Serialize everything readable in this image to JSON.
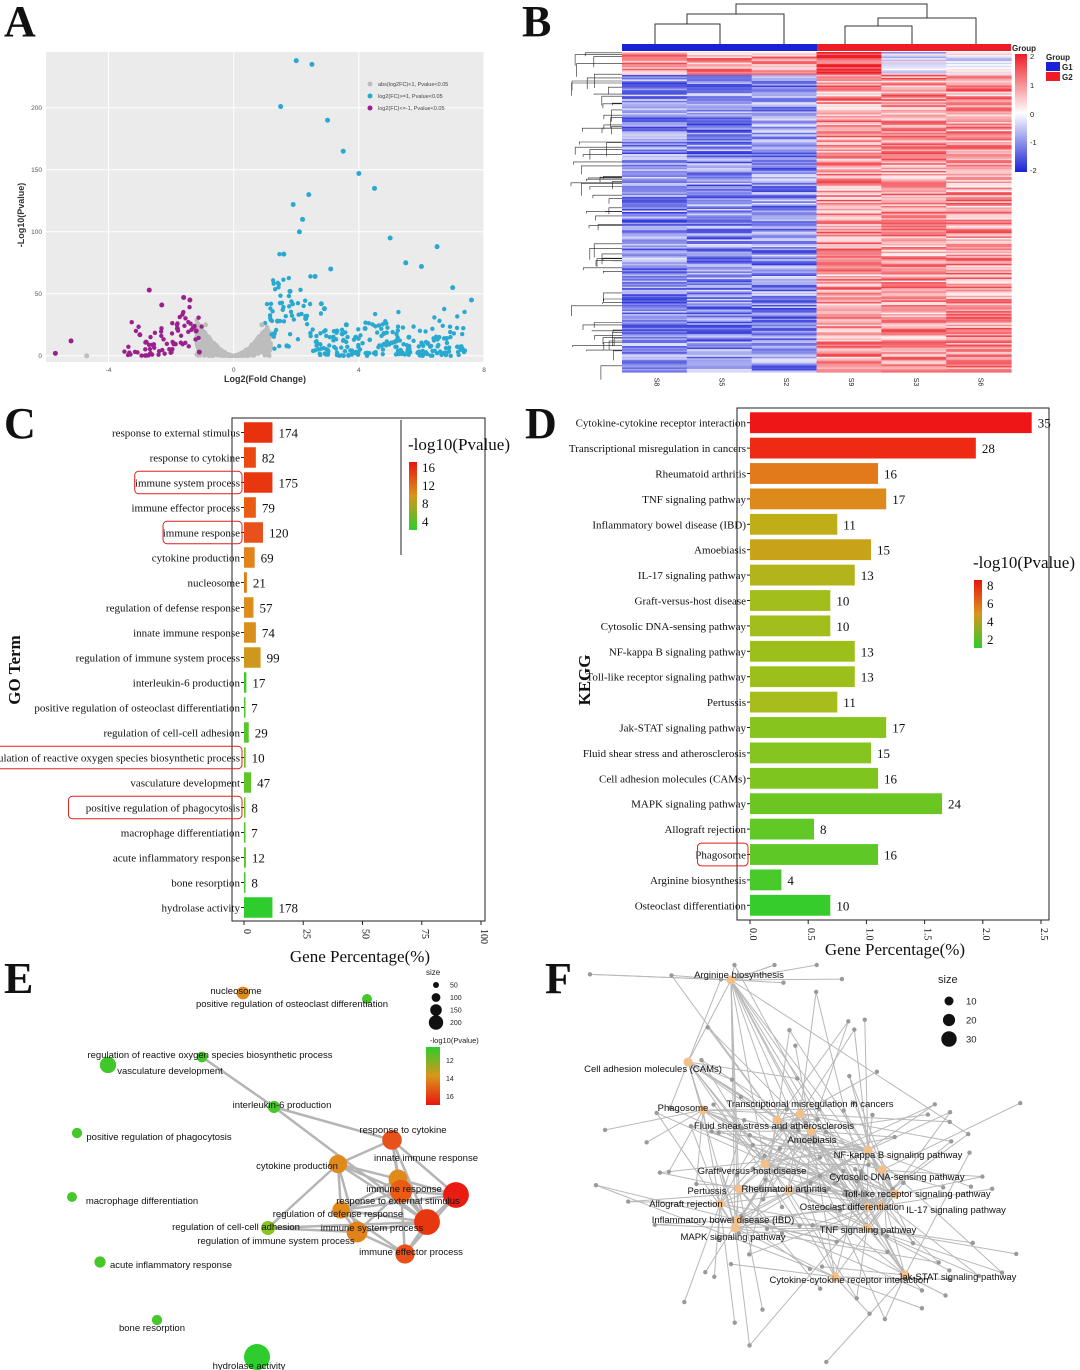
{
  "panel_labels": {
    "a": "A",
    "b": "B",
    "c": "C",
    "d": "D",
    "e": "E",
    "f": "F"
  },
  "chart_data": [
    {
      "panel": "A",
      "type": "scatter",
      "title": "",
      "xlabel": "Log2(Fold Change)",
      "ylabel": "-Log10(Pvalue)",
      "xlim": [
        -6,
        8
      ],
      "ylim": [
        -5,
        245
      ],
      "xticks": [
        "-4",
        "0",
        "4",
        "8"
      ],
      "yticks": [
        "0",
        "50",
        "100",
        "150",
        "200"
      ],
      "xtick_values": [
        -4,
        0,
        4,
        8
      ],
      "ytick_values": [
        0,
        50,
        100,
        150,
        200
      ],
      "legend": {
        "placement": "top-right",
        "entries": [
          {
            "label": "abs(log2FC)<1, Pvalue<0.05",
            "color": "#bdbdbd"
          },
          {
            "label": "log2(FC)>=1, Pvalue<0.05",
            "color": "#29a9cf"
          },
          {
            "label": "log2(FC)<=-1, Pvalue<0.05",
            "color": "#9c1f8e"
          }
        ]
      },
      "series": [
        {
          "name": "up",
          "color": "#29a9cf",
          "x": [
            2.0,
            2.5,
            1.5,
            3.0,
            3.5,
            4.0,
            4.5,
            5.0,
            5.5,
            6.0,
            6.5,
            7.0,
            7.6,
            2.2,
            1.6,
            2.9,
            3.3,
            3.9,
            5.2,
            6.2,
            2.3,
            1.4,
            1.8,
            2.6,
            2.1,
            1.9,
            2.4,
            3.1,
            1.3,
            1.7,
            2.8,
            3.6,
            4.2,
            4.8,
            5.6,
            6.8
          ],
          "y": [
            238,
            235,
            201,
            190,
            165,
            147,
            135,
            95,
            75,
            72,
            88,
            55,
            45,
            110,
            82,
            38,
            20,
            15,
            12,
            10,
            30,
            28,
            52,
            64,
            100,
            122,
            130,
            70,
            18,
            8,
            42,
            25,
            22,
            18,
            15,
            14
          ]
        },
        {
          "name": "down",
          "color": "#9c1f8e",
          "x": [
            -5.7,
            -5.2,
            -3.0,
            -2.7,
            -2.3,
            -2.0,
            -1.8,
            -1.6,
            -1.4,
            -1.2,
            -2.8,
            -1.1
          ],
          "y": [
            2,
            12,
            17,
            53,
            41,
            3,
            22,
            47,
            45,
            20,
            11,
            3
          ]
        },
        {
          "name": "ns",
          "color": "#bdbdbd",
          "x": [
            -4.7,
            -0.9,
            0.9
          ],
          "y": [
            0,
            25,
            25
          ]
        }
      ]
    },
    {
      "panel": "B",
      "type": "heatmap",
      "title": "",
      "columns": [
        "S8",
        "S5",
        "S2",
        "S9",
        "S3",
        "S6"
      ],
      "legend_title": "Group",
      "groups": [
        {
          "name": "G1",
          "color": "#1a22d6"
        },
        {
          "name": "G2",
          "color": "#ee1c25"
        }
      ],
      "color_scale": {
        "ticks": [
          "2",
          "1",
          "0",
          "-1",
          "-2"
        ],
        "min": -2,
        "max": 2
      }
    },
    {
      "panel": "C",
      "type": "bar",
      "orientation": "horizontal",
      "xlabel": "Gene Percentage(%)",
      "ylabel": "GO Term",
      "xticks": [
        "0",
        "25",
        "50",
        "75",
        "100"
      ],
      "xtick_values": [
        0,
        25,
        50,
        75,
        100
      ],
      "legend_title": "-log10(Pvalue)",
      "legend_ticks": [
        "16",
        "12",
        "8",
        "4"
      ],
      "categories": [
        "response to external stimulus",
        "response to cytokine",
        "immune system process",
        "immune effector process",
        "immune response",
        "cytokine production",
        "nucleosome",
        "regulation of defense response",
        "innate immune response",
        "regulation of immune system process",
        "interleukin-6 production",
        "positive regulation of osteoclast differentiation",
        "regulation of cell-cell adhesion",
        "regulation of reactive oxygen species biosynthetic process",
        "vasculature development",
        "positive regulation of phagocytosis",
        "macrophage differentiation",
        "acute inflammatory response",
        "bone resorption",
        "hydrolase activity"
      ],
      "values": [
        12,
        5,
        12,
        5,
        8,
        4.5,
        1.2,
        4,
        5,
        7,
        1,
        0.5,
        2,
        0.7,
        3,
        0.6,
        0.5,
        0.8,
        0.6,
        12
      ],
      "labels": [
        "174",
        "82",
        "175",
        "79",
        "120",
        "69",
        "21",
        "57",
        "74",
        "99",
        "17",
        "7",
        "29",
        "10",
        "47",
        "8",
        "7",
        "12",
        "8",
        "178"
      ],
      "colors": [
        "#e8320f",
        "#ea4a10",
        "#e8360f",
        "#ea5c12",
        "#e8511a",
        "#e2821a",
        "#e07a18",
        "#dd8d1a",
        "#d7901c",
        "#cf981c",
        "#3fc72b",
        "#4cc82b",
        "#56c829",
        "#70c625",
        "#5ec627",
        "#6cc626",
        "#4fc929",
        "#59c728",
        "#40c92c",
        "#2ecc2c"
      ],
      "highlighted": [
        "immune system process",
        "immune response",
        "regulation of reactive oxygen species biosynthetic process",
        "positive regulation of phagocytosis"
      ]
    },
    {
      "panel": "D",
      "type": "bar",
      "orientation": "horizontal",
      "xlabel": "Gene Percentage(%)",
      "ylabel": "KEGG",
      "xticks": [
        "0.0",
        "0.5",
        "1.0",
        "1.5",
        "2.0",
        "2.5"
      ],
      "xtick_values": [
        0,
        0.5,
        1.0,
        1.5,
        2.0,
        2.5
      ],
      "legend_title": "-log10(Pvalue)",
      "legend_ticks": [
        "8",
        "6",
        "4",
        "2"
      ],
      "categories": [
        "Cytokine-cytokine receptor interaction",
        "Transcriptional misregulation in cancers",
        "Rheumatoid arthritis",
        "TNF signaling pathway",
        "Inflammatory bowel disease (IBD)",
        "Amoebiasis",
        "IL-17 signaling pathway",
        "Graft-versus-host disease",
        "Cytosolic DNA-sensing pathway",
        "NF-kappa B signaling pathway",
        "Toll-like receptor signaling pathway",
        "Pertussis",
        "Jak-STAT signaling pathway",
        "Fluid shear stress and atherosclerosis",
        "Cell adhesion molecules (CAMs)",
        "MAPK signaling pathway",
        "Allograft rejection",
        "Phagosome",
        "Arginine biosynthesis",
        "Osteoclast differentiation"
      ],
      "values": [
        2.42,
        1.94,
        1.1,
        1.17,
        0.75,
        1.04,
        0.9,
        0.69,
        0.69,
        0.9,
        0.9,
        0.75,
        1.17,
        1.04,
        1.1,
        1.65,
        0.55,
        1.1,
        0.27,
        0.69
      ],
      "labels": [
        "35",
        "28",
        "16",
        "17",
        "11",
        "15",
        "13",
        "10",
        "10",
        "13",
        "13",
        "11",
        "17",
        "15",
        "16",
        "24",
        "8",
        "16",
        "4",
        "10"
      ],
      "colors": [
        "#ee1616",
        "#ee2a14",
        "#e2791b",
        "#dc8a1c",
        "#bfae17",
        "#c8a219",
        "#b2b419",
        "#a2be1a",
        "#a2be1a",
        "#9cbf1a",
        "#9cbf1a",
        "#a6bd1c",
        "#87c41e",
        "#86c41f",
        "#7ec520",
        "#6cc622",
        "#62c825",
        "#5ec826",
        "#47ca2a",
        "#36cc2c"
      ],
      "highlighted": [
        "Phagosome"
      ]
    },
    {
      "panel": "E",
      "type": "network",
      "size_legend_title": "size",
      "size_legend": [
        "50",
        "100",
        "150",
        "200"
      ],
      "color_legend_title": "-log10(Pvalue)",
      "color_legend_ticks": [
        "12",
        "14",
        "16"
      ],
      "nodes": [
        {
          "label": "nucleosome",
          "color": "#e08a1c",
          "size": 21
        },
        {
          "label": "positive regulation of osteoclast differentiation",
          "color": "#46c72a",
          "size": 7
        },
        {
          "label": "regulation of reactive oxygen species biosynthetic process",
          "color": "#46c72a",
          "size": 10
        },
        {
          "label": "vasculature development",
          "color": "#3fc72b",
          "size": 47
        },
        {
          "label": "interleukin-6 production",
          "color": "#46c72a",
          "size": 17
        },
        {
          "label": "positive regulation of phagocytosis",
          "color": "#46c72a",
          "size": 8
        },
        {
          "label": "response to cytokine",
          "color": "#e8511a",
          "size": 82
        },
        {
          "label": "innate immune response",
          "color": "#e08a1c",
          "size": 74
        },
        {
          "label": "cytokine production",
          "color": "#e08a1c",
          "size": 69
        },
        {
          "label": "immune response",
          "color": "#ea5c12",
          "size": 120
        },
        {
          "label": "response to external stimulus",
          "color": "#e81c10",
          "size": 174
        },
        {
          "label": "regulation of defense response",
          "color": "#e08a1c",
          "size": 57
        },
        {
          "label": "macrophage differentiation",
          "color": "#46c72a",
          "size": 7
        },
        {
          "label": "regulation of cell-cell adhesion",
          "color": "#86c41f",
          "size": 29
        },
        {
          "label": "immune system process",
          "color": "#e8360f",
          "size": 175
        },
        {
          "label": "regulation of immune system process",
          "color": "#e2821a",
          "size": 99
        },
        {
          "label": "immune effector process",
          "color": "#e8511a",
          "size": 79
        },
        {
          "label": "acute inflammatory response",
          "color": "#46c72a",
          "size": 12
        },
        {
          "label": "bone resorption",
          "color": "#46c72a",
          "size": 8
        },
        {
          "label": "hydrolase activity",
          "color": "#2ecc2c",
          "size": 178
        }
      ]
    },
    {
      "panel": "F",
      "type": "network",
      "size_legend_title": "size",
      "size_legend": [
        "10",
        "20",
        "30"
      ],
      "nodes": [
        "Arginine biosynthesis",
        "Cell adhesion molecules (CAMs)",
        "Phagosome",
        "Transcriptional misregulation in cancers",
        "Fluid shear stress and atherosclerosis",
        "Amoebiasis",
        "NF-kappa B signaling pathway",
        "Graft-versus-host disease",
        "Cytosolic DNA-sensing pathway",
        "Pertussis",
        "Rheumatoid arthritis",
        "Toll-like receptor signaling pathway",
        "Allograft rejection",
        "Osteoclast differentiation",
        "IL-17 signaling pathway",
        "Inflammatory bowel disease (IBD)",
        "TNF signaling pathway",
        "MAPK signaling pathway",
        "Jak-STAT signaling pathway",
        "Cytokine-cytokine receptor interaction"
      ]
    }
  ]
}
